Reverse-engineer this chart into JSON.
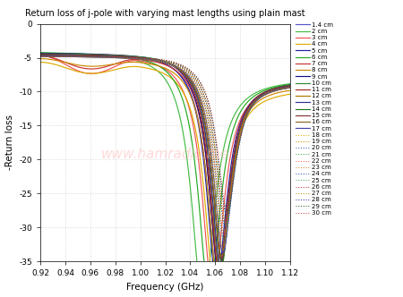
{
  "title": "Return loss of j-pole with varying mast lengths using plain mast",
  "xlabel": "Frequency (GHz)",
  "ylabel": "-Return loss",
  "xlim": [
    0.92,
    1.12
  ],
  "ylim": [
    -35,
    0
  ],
  "xticks": [
    0.92,
    0.94,
    0.96,
    0.98,
    1.0,
    1.02,
    1.04,
    1.06,
    1.08,
    1.1,
    1.12
  ],
  "yticks": [
    0,
    -5,
    -10,
    -15,
    -20,
    -25,
    -30,
    -35
  ],
  "series": [
    {
      "label": "1.4 cm",
      "color": "#5555cc",
      "linestyle": "-",
      "f0": 1.062,
      "depth": -31.0,
      "flat": -4.2,
      "bw": 0.02,
      "early_drop": 0.0
    },
    {
      "label": "2 cm",
      "color": "#44bb44",
      "linestyle": "-",
      "f0": 1.05,
      "depth": -34.5,
      "flat": -4.0,
      "bw": 0.022,
      "early_drop": 0.0
    },
    {
      "label": "3 cm",
      "color": "#ee5555",
      "linestyle": "-",
      "f0": 1.058,
      "depth": -33.0,
      "flat": -4.5,
      "bw": 0.02,
      "early_drop": -2.5
    },
    {
      "label": "4 cm",
      "color": "#ddaa00",
      "linestyle": "-",
      "f0": 1.06,
      "depth": -32.0,
      "flat": -5.5,
      "bw": 0.02,
      "early_drop": -1.5
    },
    {
      "label": "5 cm",
      "color": "#2222aa",
      "linestyle": "-",
      "f0": 1.061,
      "depth": -31.5,
      "flat": -4.3,
      "bw": 0.019,
      "early_drop": 0.0
    },
    {
      "label": "6 cm",
      "color": "#22aa22",
      "linestyle": "-",
      "f0": 1.055,
      "depth": -33.0,
      "flat": -4.1,
      "bw": 0.021,
      "early_drop": 0.0
    },
    {
      "label": "7 cm",
      "color": "#cc3333",
      "linestyle": "-",
      "f0": 1.063,
      "depth": -30.0,
      "flat": -4.6,
      "bw": 0.019,
      "early_drop": -1.8
    },
    {
      "label": "8 cm",
      "color": "#cc8800",
      "linestyle": "-",
      "f0": 1.062,
      "depth": -31.0,
      "flat": -5.0,
      "bw": 0.019,
      "early_drop": -1.0
    },
    {
      "label": "9 cm",
      "color": "#111188",
      "linestyle": "-",
      "f0": 1.063,
      "depth": -30.5,
      "flat": -4.2,
      "bw": 0.019,
      "early_drop": 0.0
    },
    {
      "label": "10 cm",
      "color": "#338833",
      "linestyle": "-",
      "f0": 1.064,
      "depth": -30.0,
      "flat": -4.3,
      "bw": 0.018,
      "early_drop": 0.0
    },
    {
      "label": "11 cm",
      "color": "#aa2222",
      "linestyle": "-",
      "f0": 1.063,
      "depth": -29.5,
      "flat": -4.4,
      "bw": 0.018,
      "early_drop": 0.0
    },
    {
      "label": "12 cm",
      "color": "#aa7700",
      "linestyle": "-",
      "f0": 1.064,
      "depth": -29.0,
      "flat": -4.5,
      "bw": 0.018,
      "early_drop": 0.0
    },
    {
      "label": "13 cm",
      "color": "#333399",
      "linestyle": "-",
      "f0": 1.064,
      "depth": -28.5,
      "flat": -4.5,
      "bw": 0.018,
      "early_drop": 0.0
    },
    {
      "label": "14 cm",
      "color": "#227722",
      "linestyle": "-",
      "f0": 1.065,
      "depth": -28.0,
      "flat": -4.6,
      "bw": 0.018,
      "early_drop": 0.0
    },
    {
      "label": "15 cm",
      "color": "#883333",
      "linestyle": "-",
      "f0": 1.065,
      "depth": -27.5,
      "flat": -4.6,
      "bw": 0.018,
      "early_drop": 0.0
    },
    {
      "label": "16 cm",
      "color": "#886622",
      "linestyle": "-",
      "f0": 1.065,
      "depth": -27.0,
      "flat": -4.7,
      "bw": 0.018,
      "early_drop": 0.0
    },
    {
      "label": "17 cm",
      "color": "#4444aa",
      "linestyle": "-",
      "f0": 1.066,
      "depth": -26.5,
      "flat": -4.7,
      "bw": 0.018,
      "early_drop": 0.0
    },
    {
      "label": "18 cm",
      "color": "#ddaa00",
      "linestyle": ":",
      "f0": 1.066,
      "depth": -26.0,
      "flat": -4.7,
      "bw": 0.018,
      "early_drop": 0.0
    },
    {
      "label": "19 cm",
      "color": "#cc8800",
      "linestyle": ":",
      "f0": 1.066,
      "depth": -25.5,
      "flat": -4.7,
      "bw": 0.018,
      "early_drop": 0.0
    },
    {
      "label": "20 cm",
      "color": "#4455bb",
      "linestyle": ":",
      "f0": 1.067,
      "depth": -25.0,
      "flat": -4.7,
      "bw": 0.018,
      "early_drop": 0.0
    },
    {
      "label": "21 cm",
      "color": "#44aa44",
      "linestyle": ":",
      "f0": 1.067,
      "depth": -24.5,
      "flat": -4.7,
      "bw": 0.018,
      "early_drop": 0.0
    },
    {
      "label": "22 cm",
      "color": "#ee5555",
      "linestyle": ":",
      "f0": 1.067,
      "depth": -24.0,
      "flat": -4.7,
      "bw": 0.018,
      "early_drop": 0.0
    },
    {
      "label": "23 cm",
      "color": "#cc8822",
      "linestyle": ":",
      "f0": 1.067,
      "depth": -23.5,
      "flat": -4.7,
      "bw": 0.018,
      "early_drop": 0.0
    },
    {
      "label": "24 cm",
      "color": "#3355bb",
      "linestyle": ":",
      "f0": 1.068,
      "depth": -23.0,
      "flat": -4.7,
      "bw": 0.018,
      "early_drop": 0.0
    },
    {
      "label": "25 cm",
      "color": "#44aa44",
      "linestyle": ":",
      "f0": 1.068,
      "depth": -22.5,
      "flat": -4.7,
      "bw": 0.018,
      "early_drop": 0.0
    },
    {
      "label": "26 cm",
      "color": "#cc3333",
      "linestyle": ":",
      "f0": 1.068,
      "depth": -22.0,
      "flat": -4.7,
      "bw": 0.018,
      "early_drop": 0.0
    },
    {
      "label": "27 cm",
      "color": "#bb8800",
      "linestyle": ":",
      "f0": 1.068,
      "depth": -21.5,
      "flat": -4.7,
      "bw": 0.018,
      "early_drop": 0.0
    },
    {
      "label": "28 cm",
      "color": "#333399",
      "linestyle": ":",
      "f0": 1.069,
      "depth": -21.0,
      "flat": -4.7,
      "bw": 0.018,
      "early_drop": 0.0
    },
    {
      "label": "29 cm",
      "color": "#226622",
      "linestyle": ":",
      "f0": 1.069,
      "depth": -20.5,
      "flat": -4.7,
      "bw": 0.018,
      "early_drop": 0.0
    },
    {
      "label": "30 cm",
      "color": "#cc4444",
      "linestyle": ":",
      "f0": 1.069,
      "depth": -20.0,
      "flat": -4.7,
      "bw": 0.018,
      "early_drop": 0.0
    }
  ],
  "watermark": "www.hamradio.me",
  "background_color": "#ffffff"
}
